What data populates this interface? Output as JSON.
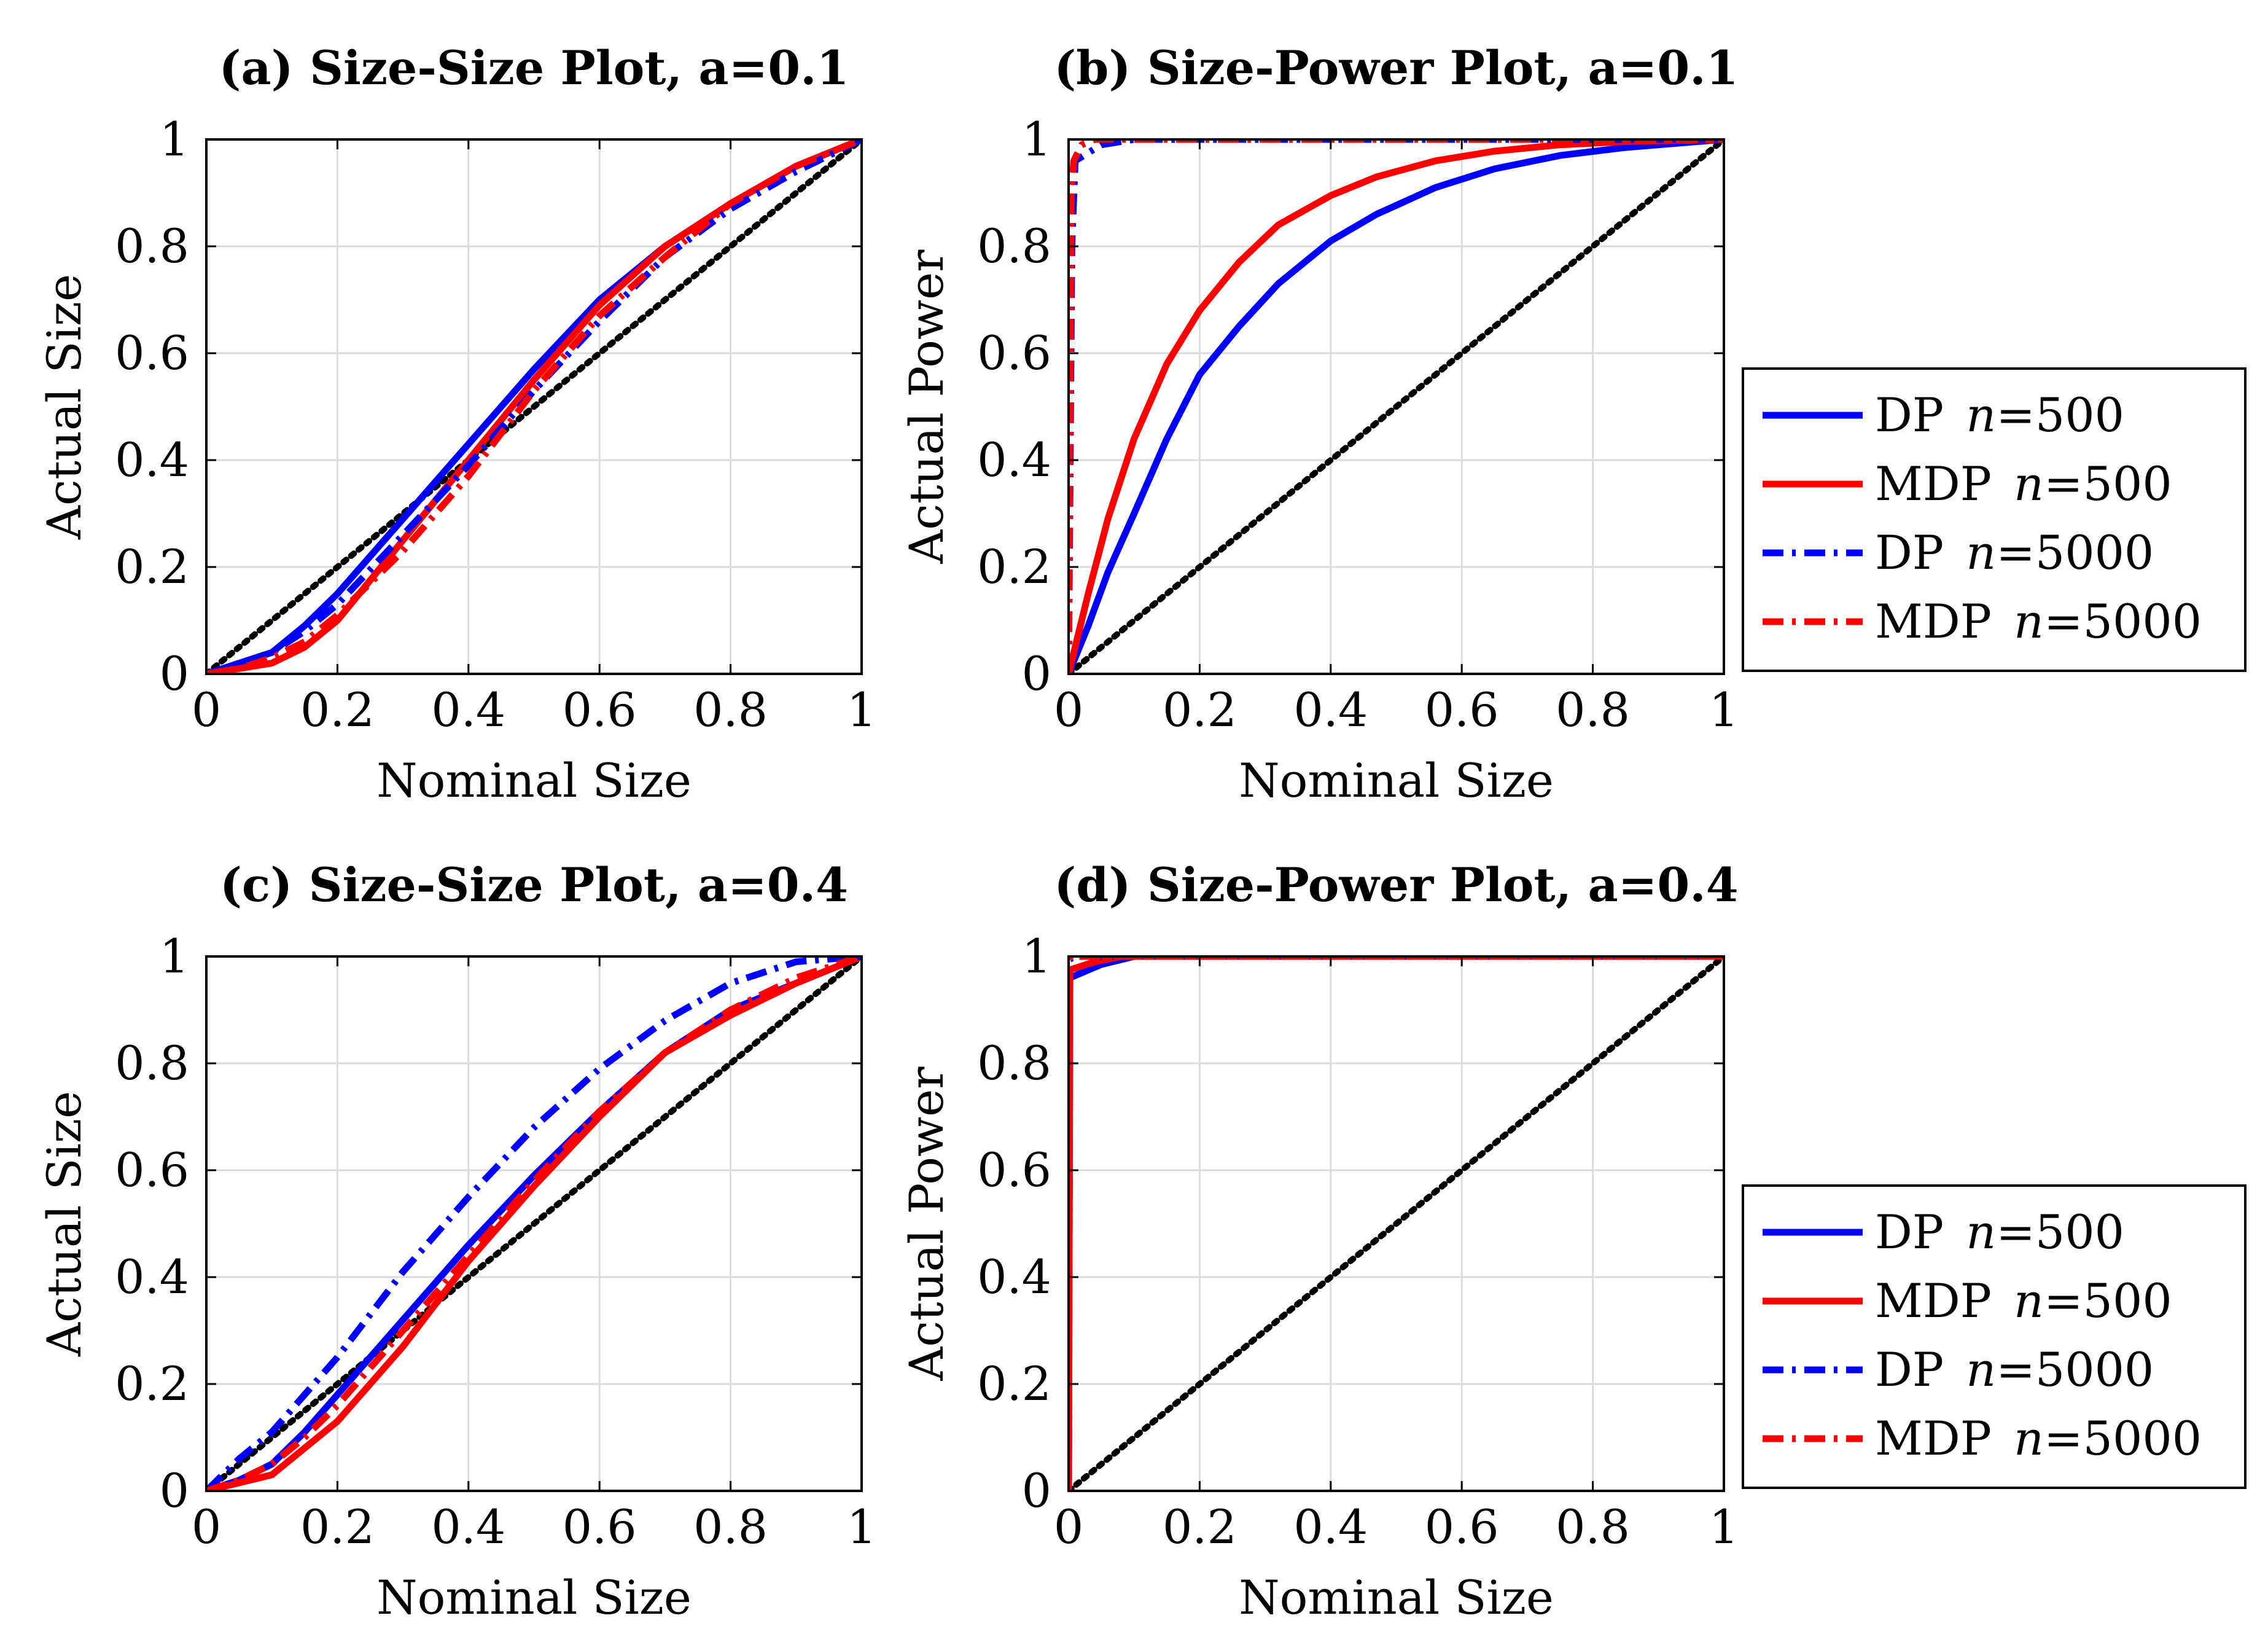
{
  "chart_data": [
    {
      "id": "a",
      "type": "line",
      "title": "(a) Size-Size Plot, a=0.1",
      "xlabel": "Nominal Size",
      "ylabel": "Actual Size",
      "xlim": [
        0,
        1
      ],
      "ylim": [
        0,
        1
      ],
      "xticks": [
        "0",
        "0.2",
        "0.4",
        "0.6",
        "0.8",
        "1"
      ],
      "yticks": [
        "0",
        "0.2",
        "0.4",
        "0.6",
        "0.8",
        "1"
      ],
      "grid": true,
      "reference_line": {
        "x": [
          0,
          1
        ],
        "y": [
          0,
          1
        ],
        "style": "dotted",
        "color": "#000000"
      },
      "series": [
        {
          "name": "DP n=500",
          "color": "#0000ff",
          "dash": "solid",
          "x": [
            0,
            0.05,
            0.1,
            0.15,
            0.2,
            0.3,
            0.4,
            0.5,
            0.6,
            0.7,
            0.8,
            0.9,
            1
          ],
          "y": [
            0,
            0.02,
            0.04,
            0.09,
            0.15,
            0.29,
            0.43,
            0.57,
            0.7,
            0.8,
            0.88,
            0.95,
            1
          ]
        },
        {
          "name": "MDP n=500",
          "color": "#ff0000",
          "dash": "solid",
          "x": [
            0,
            0.05,
            0.1,
            0.15,
            0.2,
            0.3,
            0.4,
            0.5,
            0.6,
            0.7,
            0.8,
            0.9,
            1
          ],
          "y": [
            0,
            0.01,
            0.02,
            0.05,
            0.1,
            0.25,
            0.4,
            0.55,
            0.69,
            0.8,
            0.88,
            0.95,
            1
          ]
        },
        {
          "name": "DP n=5000",
          "color": "#0000ff",
          "dash": "dashdot",
          "x": [
            0,
            0.05,
            0.1,
            0.15,
            0.2,
            0.3,
            0.4,
            0.5,
            0.6,
            0.7,
            0.8,
            0.9,
            1
          ],
          "y": [
            0,
            0.02,
            0.04,
            0.08,
            0.13,
            0.26,
            0.39,
            0.53,
            0.66,
            0.78,
            0.87,
            0.94,
            1
          ]
        },
        {
          "name": "MDP n=5000",
          "color": "#ff0000",
          "dash": "dashdot",
          "x": [
            0,
            0.05,
            0.1,
            0.15,
            0.2,
            0.3,
            0.4,
            0.5,
            0.6,
            0.7,
            0.8,
            0.9,
            1
          ],
          "y": [
            0,
            0.01,
            0.03,
            0.06,
            0.11,
            0.23,
            0.37,
            0.53,
            0.67,
            0.78,
            0.88,
            0.95,
            1
          ]
        }
      ]
    },
    {
      "id": "b",
      "type": "line",
      "title": "(b) Size-Power Plot, a=0.1",
      "xlabel": "Nominal Size",
      "ylabel": "Actual Power",
      "xlim": [
        0,
        1
      ],
      "ylim": [
        0,
        1
      ],
      "xticks": [
        "0",
        "0.2",
        "0.4",
        "0.6",
        "0.8",
        "1"
      ],
      "yticks": [
        "0",
        "0.2",
        "0.4",
        "0.6",
        "0.8",
        "1"
      ],
      "grid": true,
      "reference_line": {
        "x": [
          0,
          1
        ],
        "y": [
          0,
          1
        ],
        "style": "dotted",
        "color": "#000000"
      },
      "series": [
        {
          "name": "DP n=500",
          "color": "#0000ff",
          "dash": "solid",
          "x": [
            0,
            0.03,
            0.06,
            0.1,
            0.15,
            0.2,
            0.26,
            0.32,
            0.4,
            0.47,
            0.56,
            0.65,
            0.75,
            0.85,
            1
          ],
          "y": [
            0,
            0.09,
            0.19,
            0.3,
            0.44,
            0.56,
            0.65,
            0.73,
            0.81,
            0.86,
            0.91,
            0.945,
            0.97,
            0.985,
            1
          ]
        },
        {
          "name": "MDP n=500",
          "color": "#ff0000",
          "dash": "solid",
          "x": [
            0,
            0.03,
            0.06,
            0.1,
            0.15,
            0.2,
            0.26,
            0.32,
            0.4,
            0.47,
            0.56,
            0.65,
            0.75,
            0.85,
            1
          ],
          "y": [
            0,
            0.15,
            0.29,
            0.44,
            0.58,
            0.68,
            0.77,
            0.84,
            0.895,
            0.93,
            0.96,
            0.978,
            0.99,
            0.996,
            1
          ]
        },
        {
          "name": "DP n=5000",
          "color": "#0000ff",
          "dash": "dashdot",
          "x": [
            0,
            0.005,
            0.01,
            0.03,
            0.05,
            0.1,
            1
          ],
          "y": [
            0,
            0.8,
            0.96,
            0.975,
            0.99,
            1,
            1
          ]
        },
        {
          "name": "MDP n=5000",
          "color": "#ff0000",
          "dash": "dashdot",
          "x": [
            0,
            0.004,
            0.008,
            0.02,
            0.04,
            1
          ],
          "y": [
            0,
            0.9,
            0.96,
            0.99,
            1,
            1
          ]
        }
      ],
      "legend": "right"
    },
    {
      "id": "c",
      "type": "line",
      "title": "(c) Size-Size Plot, a=0.4",
      "xlabel": "Nominal Size",
      "ylabel": "Actual Size",
      "xlim": [
        0,
        1
      ],
      "ylim": [
        0,
        1
      ],
      "xticks": [
        "0",
        "0.2",
        "0.4",
        "0.6",
        "0.8",
        "1"
      ],
      "yticks": [
        "0",
        "0.2",
        "0.4",
        "0.6",
        "0.8",
        "1"
      ],
      "grid": true,
      "reference_line": {
        "x": [
          0,
          1
        ],
        "y": [
          0,
          1
        ],
        "style": "dotted",
        "color": "#000000"
      },
      "series": [
        {
          "name": "DP n=500",
          "color": "#0000ff",
          "dash": "solid",
          "x": [
            0,
            0.05,
            0.1,
            0.15,
            0.2,
            0.3,
            0.4,
            0.5,
            0.6,
            0.7,
            0.8,
            0.9,
            1
          ],
          "y": [
            0,
            0.02,
            0.05,
            0.11,
            0.18,
            0.32,
            0.46,
            0.59,
            0.71,
            0.82,
            0.9,
            0.95,
            1
          ]
        },
        {
          "name": "MDP n=500",
          "color": "#ff0000",
          "dash": "solid",
          "x": [
            0,
            0.05,
            0.1,
            0.15,
            0.2,
            0.3,
            0.4,
            0.5,
            0.6,
            0.7,
            0.8,
            0.9,
            1
          ],
          "y": [
            0,
            0.015,
            0.03,
            0.08,
            0.13,
            0.27,
            0.43,
            0.57,
            0.7,
            0.82,
            0.89,
            0.95,
            1
          ]
        },
        {
          "name": "DP n=5000",
          "color": "#0000ff",
          "dash": "dashdot",
          "x": [
            0,
            0.05,
            0.1,
            0.15,
            0.2,
            0.3,
            0.4,
            0.5,
            0.6,
            0.7,
            0.8,
            0.9,
            1
          ],
          "y": [
            0,
            0.06,
            0.11,
            0.18,
            0.25,
            0.41,
            0.55,
            0.68,
            0.79,
            0.88,
            0.95,
            0.99,
            1
          ]
        },
        {
          "name": "MDP n=5000",
          "color": "#ff0000",
          "dash": "dashdot",
          "x": [
            0,
            0.05,
            0.1,
            0.15,
            0.2,
            0.3,
            0.4,
            0.5,
            0.6,
            0.7,
            0.8,
            0.9,
            1
          ],
          "y": [
            0,
            0.02,
            0.05,
            0.1,
            0.16,
            0.3,
            0.44,
            0.58,
            0.71,
            0.82,
            0.9,
            0.96,
            1
          ]
        }
      ]
    },
    {
      "id": "d",
      "type": "line",
      "title": "(d) Size-Power Plot, a=0.4",
      "xlabel": "Nominal Size",
      "ylabel": "Actual Power",
      "xlim": [
        0,
        1
      ],
      "ylim": [
        0,
        1
      ],
      "xticks": [
        "0",
        "0.2",
        "0.4",
        "0.6",
        "0.8",
        "1"
      ],
      "yticks": [
        "0",
        "0.2",
        "0.4",
        "0.6",
        "0.8",
        "1"
      ],
      "grid": true,
      "reference_line": {
        "x": [
          0,
          1
        ],
        "y": [
          0,
          1
        ],
        "style": "dotted",
        "color": "#000000"
      },
      "series": [
        {
          "name": "DP n=500",
          "color": "#0000ff",
          "dash": "solid",
          "x": [
            0,
            0.002,
            0.05,
            0.1,
            1
          ],
          "y": [
            0,
            0.96,
            0.985,
            1,
            1
          ]
        },
        {
          "name": "MDP n=500",
          "color": "#ff0000",
          "dash": "solid",
          "x": [
            0,
            0.002,
            0.04,
            0.08,
            1
          ],
          "y": [
            0,
            0.975,
            0.99,
            1,
            1
          ]
        },
        {
          "name": "DP n=5000",
          "color": "#0000ff",
          "dash": "dashdot",
          "x": [
            0,
            0.002,
            0.01,
            1
          ],
          "y": [
            0,
            0.995,
            1,
            1
          ]
        },
        {
          "name": "MDP n=5000",
          "color": "#ff0000",
          "dash": "dashdot",
          "x": [
            0,
            0.002,
            0.01,
            1
          ],
          "y": [
            0,
            0.998,
            1,
            1
          ]
        }
      ],
      "legend": "right"
    }
  ],
  "legend": {
    "entries": [
      {
        "name": "DP",
        "var": "n",
        "eq": "=500",
        "color": "#0000ff",
        "dash": "solid"
      },
      {
        "name": "MDP",
        "var": "n",
        "eq": "=500",
        "color": "#ff0000",
        "dash": "solid"
      },
      {
        "name": "DP",
        "var": "n",
        "eq": "=5000",
        "color": "#0000ff",
        "dash": "dashdot"
      },
      {
        "name": "MDP",
        "var": "n",
        "eq": "=5000",
        "color": "#ff0000",
        "dash": "dashdot"
      }
    ]
  }
}
